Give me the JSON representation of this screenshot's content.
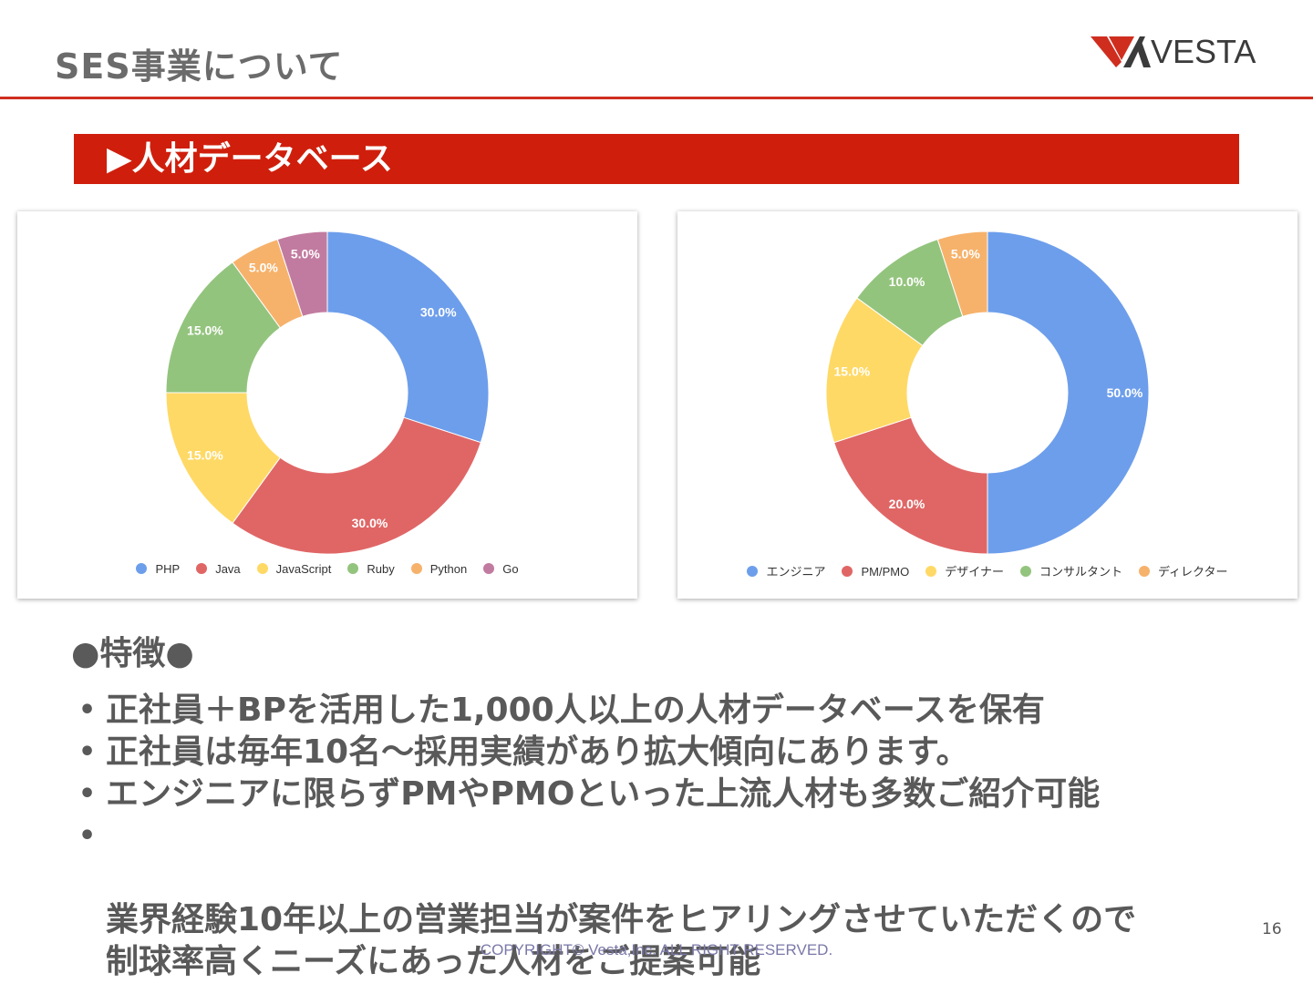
{
  "header": {
    "title": "SES事業について",
    "logo_text": "VESTA"
  },
  "section": {
    "title": "▶人材データベース"
  },
  "colors": {
    "accent": "#cf1f0c",
    "blue": "#6d9eeb",
    "red": "#e06666",
    "yellow": "#ffd966",
    "green": "#93c47d",
    "orange": "#f6b26b",
    "purple": "#c27ba0"
  },
  "chart_data": [
    {
      "type": "pie",
      "donut": true,
      "categories": [
        "PHP",
        "Java",
        "JavaScript",
        "Ruby",
        "Python",
        "Go"
      ],
      "values": [
        30.0,
        30.0,
        15.0,
        15.0,
        5.0,
        5.0
      ],
      "labels": [
        "30.0%",
        "30.0%",
        "15.0%",
        "15.0%",
        "5.0%",
        "5.0%"
      ],
      "colors": [
        "#6d9eeb",
        "#e06666",
        "#ffd966",
        "#93c47d",
        "#f6b26b",
        "#c27ba0"
      ],
      "legend_position": "bottom"
    },
    {
      "type": "pie",
      "donut": true,
      "categories": [
        "エンジニア",
        "PM/PMO",
        "デザイナー",
        "コンサルタント",
        "ディレクター"
      ],
      "values": [
        50.0,
        20.0,
        15.0,
        10.0,
        5.0
      ],
      "labels": [
        "50.0%",
        "20.0%",
        "15.0%",
        "10.0%",
        "5.0%"
      ],
      "colors": [
        "#6d9eeb",
        "#e06666",
        "#ffd966",
        "#93c47d",
        "#f6b26b"
      ],
      "legend_position": "bottom"
    }
  ],
  "features": {
    "heading": "●特徴●",
    "bullet_symbol": "•",
    "items": [
      "正社員＋BPを活用した1,000人以上の人材データベースを保有",
      "正社員は毎年10名～採用実績があり拡大傾向にあります。",
      "エンジニアに限らずPMやPMOといった上流人材も多数ご紹介可能",
      "業界経験10年以上の営業担当が案件をヒアリングさせていただくので\n制球率高くニーズにあった人材をご提案可能"
    ]
  },
  "footer": {
    "page_number": "16",
    "copyright": "COPYRIGHT© Vesta,Inc. ALL RIGHT RESERVED."
  }
}
